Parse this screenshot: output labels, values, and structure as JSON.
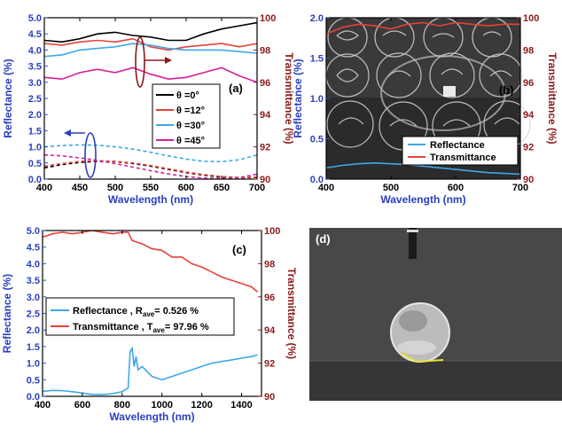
{
  "chart_data": [
    {
      "panel": "a",
      "type": "line",
      "panel_label": "(a)",
      "xlabel": "Wavelength (nm)",
      "ylabel": "Reflectance (%)",
      "ylabel_right": "Transmittance (%)",
      "xlim": [
        400,
        700
      ],
      "ylim": [
        0,
        5.0
      ],
      "ylim_right": [
        90,
        100
      ],
      "xticks": [
        "400",
        "450",
        "500",
        "550",
        "600",
        "650",
        "700"
      ],
      "yticks": [
        "0.0",
        "0.5",
        "1.0",
        "1.5",
        "2.0",
        "2.5",
        "3.0",
        "3.5",
        "4.0",
        "4.5",
        "5.0"
      ],
      "yticks_right": [
        "90",
        "92",
        "94",
        "96",
        "98",
        "100"
      ],
      "x": [
        400,
        425,
        450,
        475,
        500,
        525,
        550,
        575,
        600,
        625,
        650,
        675,
        700
      ],
      "series": [
        {
          "name": "θ =0°",
          "color": "#000000",
          "axis": "right",
          "style": "solid",
          "values": [
            98.6,
            98.5,
            98.7,
            99.0,
            99.1,
            98.9,
            98.8,
            98.6,
            98.6,
            99.0,
            99.3,
            99.5,
            99.7
          ]
        },
        {
          "name": "θ =12°",
          "color": "#e8413a",
          "axis": "right",
          "style": "solid",
          "values": [
            98.4,
            98.3,
            98.5,
            98.6,
            98.5,
            98.7,
            98.2,
            98.0,
            98.2,
            98.3,
            98.4,
            98.2,
            98.4
          ]
        },
        {
          "name": "θ =30°",
          "color": "#3da8e6",
          "axis": "right",
          "style": "solid",
          "values": [
            97.6,
            97.7,
            98.0,
            98.1,
            98.2,
            98.4,
            98.3,
            98.1,
            98.0,
            98.0,
            98.0,
            97.9,
            97.8
          ]
        },
        {
          "name": "θ =45°",
          "color": "#d4209a",
          "axis": "right",
          "style": "solid",
          "values": [
            96.3,
            96.2,
            96.6,
            96.8,
            96.6,
            96.9,
            96.5,
            96.2,
            96.3,
            96.6,
            96.9,
            96.4,
            96.0
          ]
        },
        {
          "name": "R θ=0°",
          "color": "#000000",
          "axis": "left",
          "style": "dashed",
          "values": [
            0.35,
            0.45,
            0.52,
            0.55,
            0.54,
            0.48,
            0.4,
            0.3,
            0.2,
            0.12,
            0.06,
            0.04,
            0.05
          ]
        },
        {
          "name": "R θ=12°",
          "color": "#e8413a",
          "axis": "left",
          "style": "dashed",
          "values": [
            0.4,
            0.48,
            0.55,
            0.57,
            0.55,
            0.5,
            0.42,
            0.32,
            0.22,
            0.14,
            0.08,
            0.05,
            0.06
          ]
        },
        {
          "name": "R θ=30°",
          "color": "#3da8e6",
          "axis": "left",
          "style": "dashed",
          "values": [
            1.0,
            1.04,
            1.06,
            1.05,
            1.0,
            0.93,
            0.83,
            0.72,
            0.62,
            0.55,
            0.54,
            0.6,
            0.75
          ]
        },
        {
          "name": "R θ=45°",
          "color": "#d4209a",
          "axis": "left",
          "style": "dashed",
          "values": [
            0.75,
            0.72,
            0.66,
            0.58,
            0.48,
            0.37,
            0.26,
            0.16,
            0.08,
            0.03,
            0.02,
            0.05,
            0.15
          ]
        }
      ],
      "legend": [
        "θ =0°",
        "θ =12°",
        "θ =30°",
        "θ =45°"
      ],
      "legend_location": "right"
    },
    {
      "panel": "b",
      "type": "line",
      "panel_label": "(b)",
      "xlabel": "Wavelength (nm)",
      "ylabel": "Reflectance (%)",
      "ylabel_right": "Transmittance (%)",
      "xlim": [
        400,
        700
      ],
      "ylim": [
        0,
        2.0
      ],
      "ylim_right": [
        90,
        100
      ],
      "xticks": [
        "400",
        "500",
        "600",
        "700"
      ],
      "yticks": [
        "0.0",
        "0.5",
        "1.0",
        "1.5",
        "2.0"
      ],
      "yticks_right": [
        "90",
        "92",
        "94",
        "96",
        "98",
        "100"
      ],
      "x": [
        400,
        425,
        450,
        475,
        500,
        525,
        550,
        575,
        600,
        625,
        650,
        675,
        700
      ],
      "series": [
        {
          "name": "Reflectance",
          "color": "#3da8e6",
          "axis": "left",
          "values": [
            0.14,
            0.17,
            0.19,
            0.2,
            0.19,
            0.18,
            0.16,
            0.14,
            0.12,
            0.1,
            0.08,
            0.07,
            0.06
          ]
        },
        {
          "name": "Transmittance",
          "color": "#e8413a",
          "axis": "right",
          "values": [
            99.0,
            99.4,
            99.6,
            99.5,
            99.3,
            99.6,
            99.7,
            99.5,
            99.7,
            99.6,
            99.5,
            99.6,
            99.6
          ]
        }
      ],
      "legend": [
        "Reflectance",
        "Transmittance"
      ],
      "legend_location": "bottom-right",
      "background": "photograph of glass substrate over printed circular logos"
    },
    {
      "panel": "c",
      "type": "line",
      "panel_label": "(c)",
      "xlabel": "Wavelength (nm)",
      "ylabel": "Reflectance (%)",
      "ylabel_right": "Transmittance (%)",
      "xlim": [
        400,
        1500
      ],
      "ylim": [
        0,
        5.0
      ],
      "ylim_right": [
        90,
        100
      ],
      "xticks": [
        "400",
        "600",
        "800",
        "1000",
        "1200",
        "1400"
      ],
      "yticks": [
        "0.0",
        "0.5",
        "1.0",
        "1.5",
        "2.0",
        "2.5",
        "3.0",
        "3.5",
        "4.0",
        "4.5",
        "5.0"
      ],
      "yticks_right": [
        "90",
        "92",
        "94",
        "96",
        "98",
        "100"
      ],
      "series": [
        {
          "name": "Reflectance",
          "color": "#3da8e6",
          "axis": "left",
          "x": [
            400,
            450,
            500,
            550,
            600,
            650,
            700,
            750,
            800,
            830,
            840,
            850,
            860,
            870,
            880,
            900,
            950,
            1000,
            1050,
            1100,
            1150,
            1200,
            1250,
            1300,
            1350,
            1400,
            1450,
            1480
          ],
          "values": [
            0.15,
            0.18,
            0.17,
            0.14,
            0.1,
            0.06,
            0.05,
            0.08,
            0.14,
            0.25,
            1.35,
            1.45,
            0.9,
            1.2,
            0.8,
            0.9,
            0.6,
            0.5,
            0.6,
            0.7,
            0.8,
            0.9,
            1.0,
            1.05,
            1.1,
            1.15,
            1.2,
            1.25
          ]
        },
        {
          "name": "Transmittance",
          "color": "#e8413a",
          "axis": "right",
          "x": [
            400,
            450,
            500,
            550,
            600,
            650,
            700,
            750,
            800,
            830,
            850,
            900,
            950,
            1000,
            1050,
            1100,
            1150,
            1200,
            1250,
            1300,
            1350,
            1400,
            1450,
            1480
          ],
          "values": [
            99.6,
            99.8,
            99.9,
            99.8,
            99.9,
            100.0,
            99.9,
            99.8,
            99.9,
            99.9,
            99.4,
            99.2,
            98.9,
            98.8,
            98.4,
            98.4,
            98.0,
            97.8,
            97.5,
            97.2,
            97.0,
            96.8,
            96.6,
            96.3
          ]
        }
      ],
      "legend": [
        {
          "text": "Reflectance      , R",
          "sub": "ave",
          "rest": "= 0.526 %"
        },
        {
          "text": "Transmittance , T",
          "sub": "ave",
          "rest": "= 97.96 %"
        }
      ],
      "legend_location": "center"
    }
  ],
  "panel_d": {
    "label": "(d)"
  }
}
